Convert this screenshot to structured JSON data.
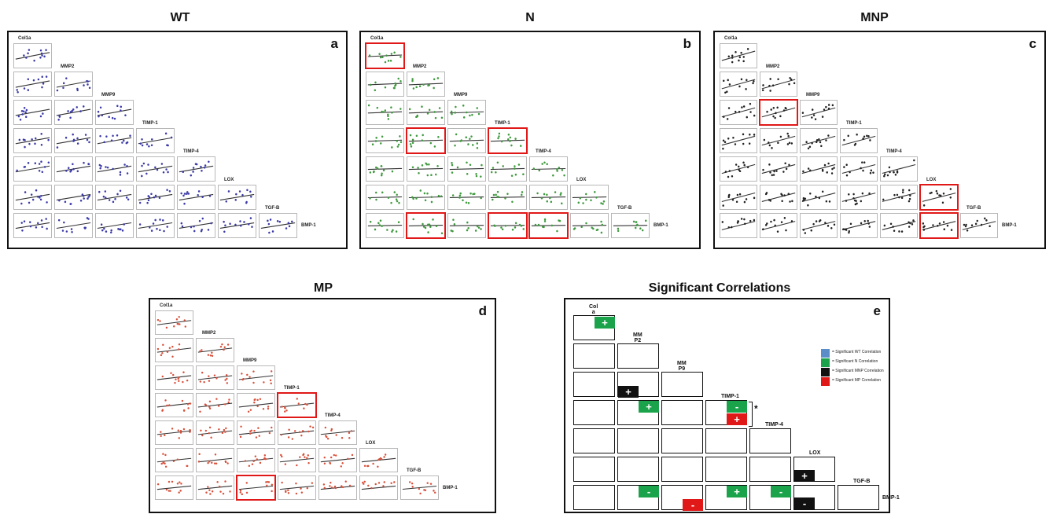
{
  "variables": [
    "Col1a",
    "MMP2",
    "MMP9",
    "TIMP-1",
    "TIMP-4",
    "LOX",
    "TGF-B",
    "BMP-1"
  ],
  "panels": [
    {
      "title": "WT",
      "letter": "a",
      "dot": "#3a3aa8",
      "highlights": []
    },
    {
      "title": "N",
      "letter": "b",
      "dot": "#3f9a3f",
      "highlights": [
        [
          0,
          0
        ],
        [
          3,
          1
        ],
        [
          3,
          3
        ],
        [
          6,
          1
        ],
        [
          6,
          3
        ],
        [
          6,
          4
        ]
      ]
    },
    {
      "title": "MNP",
      "letter": "c",
      "dot": "#222222",
      "highlights": [
        [
          2,
          1
        ],
        [
          5,
          5
        ],
        [
          6,
          5
        ]
      ]
    },
    {
      "title": "MP",
      "letter": "d",
      "dot": "#d9503a",
      "highlights": [
        [
          3,
          3
        ],
        [
          6,
          2
        ]
      ]
    }
  ],
  "summary": {
    "title": "Significant Correlations",
    "letter": "e",
    "col_labels": [
      "Col\na",
      "MM\nP2",
      "MM\nP9",
      "TIMP-1",
      "TIMP-4",
      "LOX",
      "TGF-B",
      "BMP-1"
    ],
    "badges": [
      {
        "row": 0,
        "col": 0,
        "sign": "+",
        "color": "green"
      },
      {
        "row": 2,
        "col": 1,
        "sign": "+",
        "color": "black"
      },
      {
        "row": 3,
        "col": 1,
        "sign": "+",
        "color": "green"
      },
      {
        "row": 3,
        "col": 3,
        "sign": "-",
        "color": "green"
      },
      {
        "row": 3,
        "col": 3,
        "sign": "+",
        "color": "red"
      },
      {
        "row": 5,
        "col": 5,
        "sign": "+",
        "color": "black"
      },
      {
        "row": 6,
        "col": 1,
        "sign": "-",
        "color": "green"
      },
      {
        "row": 6,
        "col": 2,
        "sign": "-",
        "color": "red"
      },
      {
        "row": 6,
        "col": 3,
        "sign": "+",
        "color": "green"
      },
      {
        "row": 6,
        "col": 4,
        "sign": "-",
        "color": "green"
      },
      {
        "row": 6,
        "col": 5,
        "sign": "-",
        "color": "black"
      }
    ],
    "star": "*",
    "legend": [
      {
        "color": "#5b8ec9",
        "text": "= Significant WT Correlation"
      },
      {
        "color": "#1aa34a",
        "text": "= Significant N Correlation"
      },
      {
        "color": "#111111",
        "text": "= Significant MNP Correlation"
      },
      {
        "color": "#e01818",
        "text": "= Significant MP Correlation"
      }
    ],
    "colors": {
      "green": "#1aa34a",
      "black": "#111111",
      "red": "#e01818"
    }
  }
}
